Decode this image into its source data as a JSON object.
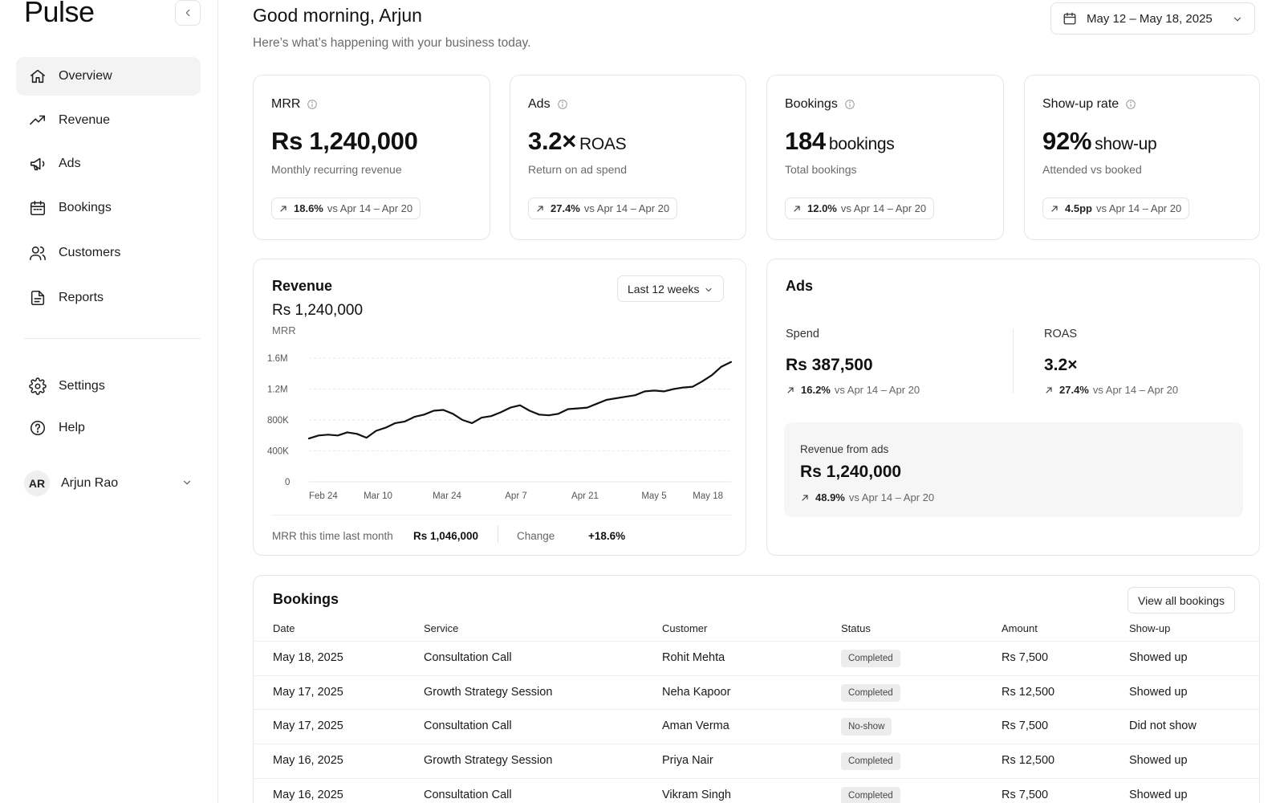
{
  "app": {
    "name": "Pulse"
  },
  "sidebar": {
    "nav": [
      {
        "label": "Overview",
        "icon": "home-icon",
        "active": true
      },
      {
        "label": "Revenue",
        "icon": "trending-up-icon"
      },
      {
        "label": "Ads",
        "icon": "megaphone-icon"
      },
      {
        "label": "Bookings",
        "icon": "calendar-icon"
      },
      {
        "label": "Customers",
        "icon": "users-icon"
      },
      {
        "label": "Reports",
        "icon": "file-text-icon"
      }
    ],
    "secondary": [
      {
        "label": "Settings",
        "icon": "gear-icon"
      },
      {
        "label": "Help",
        "icon": "help-circle-icon"
      }
    ],
    "user": {
      "initials": "AR",
      "name": "Arjun Rao"
    }
  },
  "header": {
    "greeting": "Good morning, Arjun",
    "subtitle": "Here’s what’s happening with your business today.",
    "date_range": "May 12 – May 18, 2025"
  },
  "kpis": [
    {
      "title": "MRR",
      "value": "Rs 1,240,000",
      "unit": "",
      "desc": "Monthly recurring revenue",
      "change": "18.6%",
      "compare": "vs Apr 14 – Apr 20"
    },
    {
      "title": "Ads",
      "value": "3.2×",
      "unit": "ROAS",
      "desc": "Return on ad spend",
      "change": "27.4%",
      "compare": "vs Apr 14 – Apr 20"
    },
    {
      "title": "Bookings",
      "value": "184",
      "unit": "bookings",
      "desc": "Total bookings",
      "change": "12.0%",
      "compare": "vs Apr 14 – Apr 20"
    },
    {
      "title": "Show-up rate",
      "value": "92%",
      "unit": "show-up",
      "desc": "Attended vs booked",
      "change": "4.5pp",
      "compare": "vs Apr 14 – Apr 20"
    }
  ],
  "revenue": {
    "title": "Revenue",
    "range": "Last 12 weeks",
    "value": "Rs 1,240,000",
    "sub": "MRR",
    "footer": {
      "last_month_label": "MRR this time last month",
      "last_month_value": "Rs 1,046,000",
      "change_label": "Change",
      "change_value": "+18.6%"
    }
  },
  "chart_data": {
    "type": "line",
    "title": "",
    "xlabel": "",
    "ylabel": "",
    "ylim": [
      0,
      1600000
    ],
    "yticks": [
      "0",
      "400K",
      "800K",
      "1.2M",
      "1.6M"
    ],
    "yticks_values": [
      0,
      400000,
      800000,
      1200000,
      1600000
    ],
    "x_tick_labels": [
      "Feb 24",
      "Mar 10",
      "Mar 24",
      "Apr 7",
      "Apr 21",
      "May 5",
      "May 18"
    ],
    "grid": true,
    "legend": "none",
    "series": [
      {
        "name": "",
        "color": "#111111",
        "values": [
          560000,
          600000,
          610000,
          600000,
          640000,
          620000,
          570000,
          660000,
          700000,
          760000,
          780000,
          840000,
          870000,
          920000,
          930000,
          880000,
          800000,
          760000,
          830000,
          850000,
          900000,
          960000,
          990000,
          920000,
          870000,
          860000,
          880000,
          940000,
          950000,
          960000,
          1010000,
          1060000,
          1080000,
          1100000,
          1120000,
          1170000,
          1180000,
          1170000,
          1200000,
          1220000,
          1230000,
          1300000,
          1380000,
          1490000,
          1550000
        ]
      }
    ]
  },
  "ads_panel": {
    "title": "Ads",
    "spend_label": "Spend",
    "spend_value": "Rs 387,500",
    "spend_change": "16.2%",
    "spend_compare": "vs Apr 14 – Apr 20",
    "roas_label": "ROAS",
    "roas_value": "3.2×",
    "roas_change": "27.4%",
    "roas_compare": "vs Apr 14 – Apr 20",
    "rev_label": "Revenue from ads",
    "rev_value": "Rs 1,240,000",
    "rev_change": "48.9%",
    "rev_compare": "vs Apr 14 – Apr 20"
  },
  "bookings": {
    "title": "Bookings",
    "view_all": "View all bookings",
    "columns": [
      "Date",
      "Service",
      "Customer",
      "Status",
      "Amount",
      "Show-up"
    ],
    "rows": [
      {
        "date": "May 18, 2025",
        "service": "Consultation Call",
        "customer": "Rohit Mehta",
        "status": "Completed",
        "amount": "Rs 7,500",
        "showup": "Showed up"
      },
      {
        "date": "May 17, 2025",
        "service": "Growth Strategy Session",
        "customer": "Neha Kapoor",
        "status": "Completed",
        "amount": "Rs 12,500",
        "showup": "Showed up"
      },
      {
        "date": "May 17, 2025",
        "service": "Consultation Call",
        "customer": "Aman Verma",
        "status": "No-show",
        "amount": "Rs 7,500",
        "showup": "Did not show"
      },
      {
        "date": "May 16, 2025",
        "service": "Growth Strategy Session",
        "customer": "Priya Nair",
        "status": "Completed",
        "amount": "Rs 12,500",
        "showup": "Showed up"
      },
      {
        "date": "May 16, 2025",
        "service": "Consultation Call",
        "customer": "Vikram Singh",
        "status": "Completed",
        "amount": "Rs 7,500",
        "showup": "Showed up"
      }
    ]
  }
}
